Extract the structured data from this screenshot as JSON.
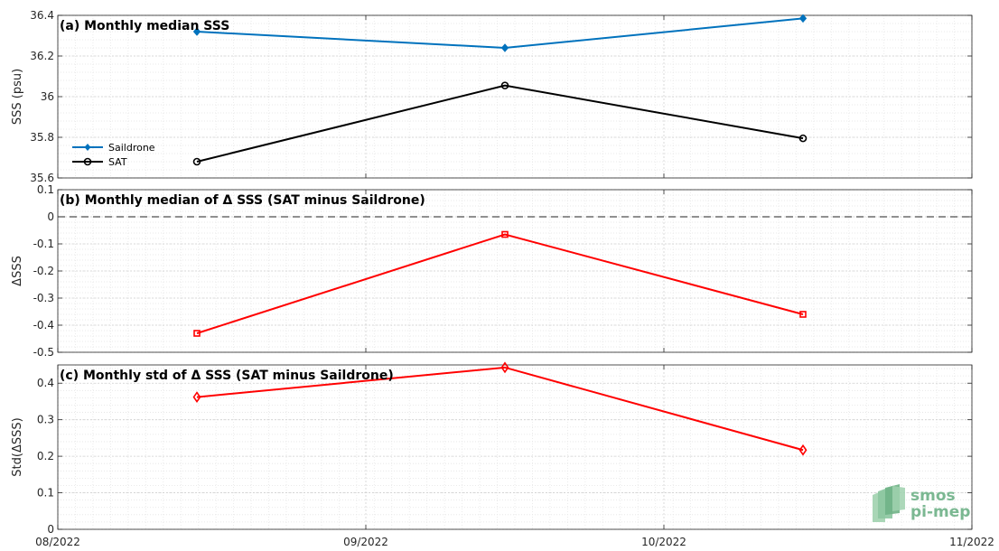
{
  "chart_data": [
    {
      "type": "line",
      "panel": "a",
      "title": "(a) Monthly median SSS",
      "ylabel": "SSS (psu)",
      "ylim": [
        35.6,
        36.4
      ],
      "yticks": [
        35.6,
        35.8,
        36,
        36.2,
        36.4
      ],
      "x": [
        "2022-08-15",
        "2022-09-15",
        "2022-10-15"
      ],
      "series": [
        {
          "name": "Saildrone",
          "color": "#0072BD",
          "marker": "diamond-filled",
          "values": [
            36.32,
            36.24,
            36.385
          ]
        },
        {
          "name": "SAT",
          "color": "#000000",
          "marker": "circle",
          "values": [
            35.68,
            36.055,
            35.795
          ]
        }
      ],
      "legend_position": "bottom-left",
      "grid": true
    },
    {
      "type": "line",
      "panel": "b",
      "title": "(b) Monthly median of Δ SSS (SAT minus Saildrone)",
      "ylabel": "ΔSSS",
      "ylim": [
        -0.5,
        0.1
      ],
      "yticks": [
        -0.5,
        -0.4,
        -0.3,
        -0.2,
        -0.1,
        0,
        0.1
      ],
      "reference_line": 0,
      "x": [
        "2022-08-15",
        "2022-09-15",
        "2022-10-15"
      ],
      "series": [
        {
          "color": "#FF0000",
          "marker": "square",
          "values": [
            -0.43,
            -0.065,
            -0.36
          ]
        }
      ],
      "grid": true
    },
    {
      "type": "line",
      "panel": "c",
      "title": "(c) Monthly std of Δ SSS (SAT minus Saildrone)",
      "ylabel": "Std(ΔSSS)",
      "ylim": [
        0,
        0.45
      ],
      "yticks": [
        0,
        0.1,
        0.2,
        0.3,
        0.4
      ],
      "x": [
        "2022-08-15",
        "2022-09-15",
        "2022-10-15"
      ],
      "series": [
        {
          "color": "#FF0000",
          "marker": "diamond",
          "values": [
            0.362,
            0.443,
            0.217
          ]
        }
      ],
      "grid": true
    }
  ],
  "xaxis": {
    "range": [
      "2022-08-01",
      "2022-11-01"
    ],
    "ticks": [
      "2022-08-01",
      "2022-09-01",
      "2022-10-01",
      "2022-11-01"
    ],
    "tick_labels": [
      "08/2022",
      "09/2022",
      "10/2022",
      "11/2022"
    ]
  },
  "logo": {
    "line1": "smos",
    "line2": "pi-mep",
    "color": "#7bb892"
  }
}
